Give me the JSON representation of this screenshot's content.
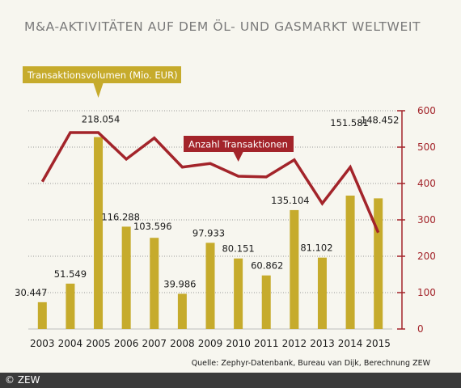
{
  "title": "M&A-AKTIVITÄTEN AUF DEM ÖL- UND GASMARKT WELTWEIT",
  "source": "Quelle: Zephyr-Datenbank, Bureau van Dijk, Berechnung ZEW",
  "copyright": "© ZEW",
  "colors": {
    "bar": "#c6ab2c",
    "line": "#a3242a",
    "grid": "#9a9a9a",
    "text": "#1a1a1a"
  },
  "chart_data": {
    "type": "bar",
    "categories": [
      "2003",
      "2004",
      "2005",
      "2006",
      "2007",
      "2008",
      "2009",
      "2010",
      "2011",
      "2012",
      "2013",
      "2014",
      "2015"
    ],
    "series": [
      {
        "name": "Transaktionsvolumen (Mio. EUR)",
        "type": "bar",
        "values": [
          30447,
          51549,
          218054,
          116288,
          103596,
          39986,
          97933,
          80151,
          60862,
          135104,
          81102,
          151581,
          148452
        ],
        "labels": [
          "30.447",
          "51.549",
          "218.054",
          "116.288",
          "103.596",
          "39.986",
          "97.933",
          "80.151",
          "60.862",
          "135.104",
          "81.102",
          "151.581",
          "148.452"
        ]
      },
      {
        "name": "Anzahl Transaktionen",
        "type": "line",
        "axis": "right",
        "values": [
          405,
          540,
          540,
          467,
          525,
          445,
          455,
          420,
          418,
          465,
          345,
          445,
          265
        ]
      }
    ],
    "left_ylim": [
      0,
      248000
    ],
    "right_ylim": [
      0,
      600
    ],
    "right_ticks": [
      0,
      100,
      200,
      300,
      400,
      500,
      600
    ],
    "grid": true
  }
}
